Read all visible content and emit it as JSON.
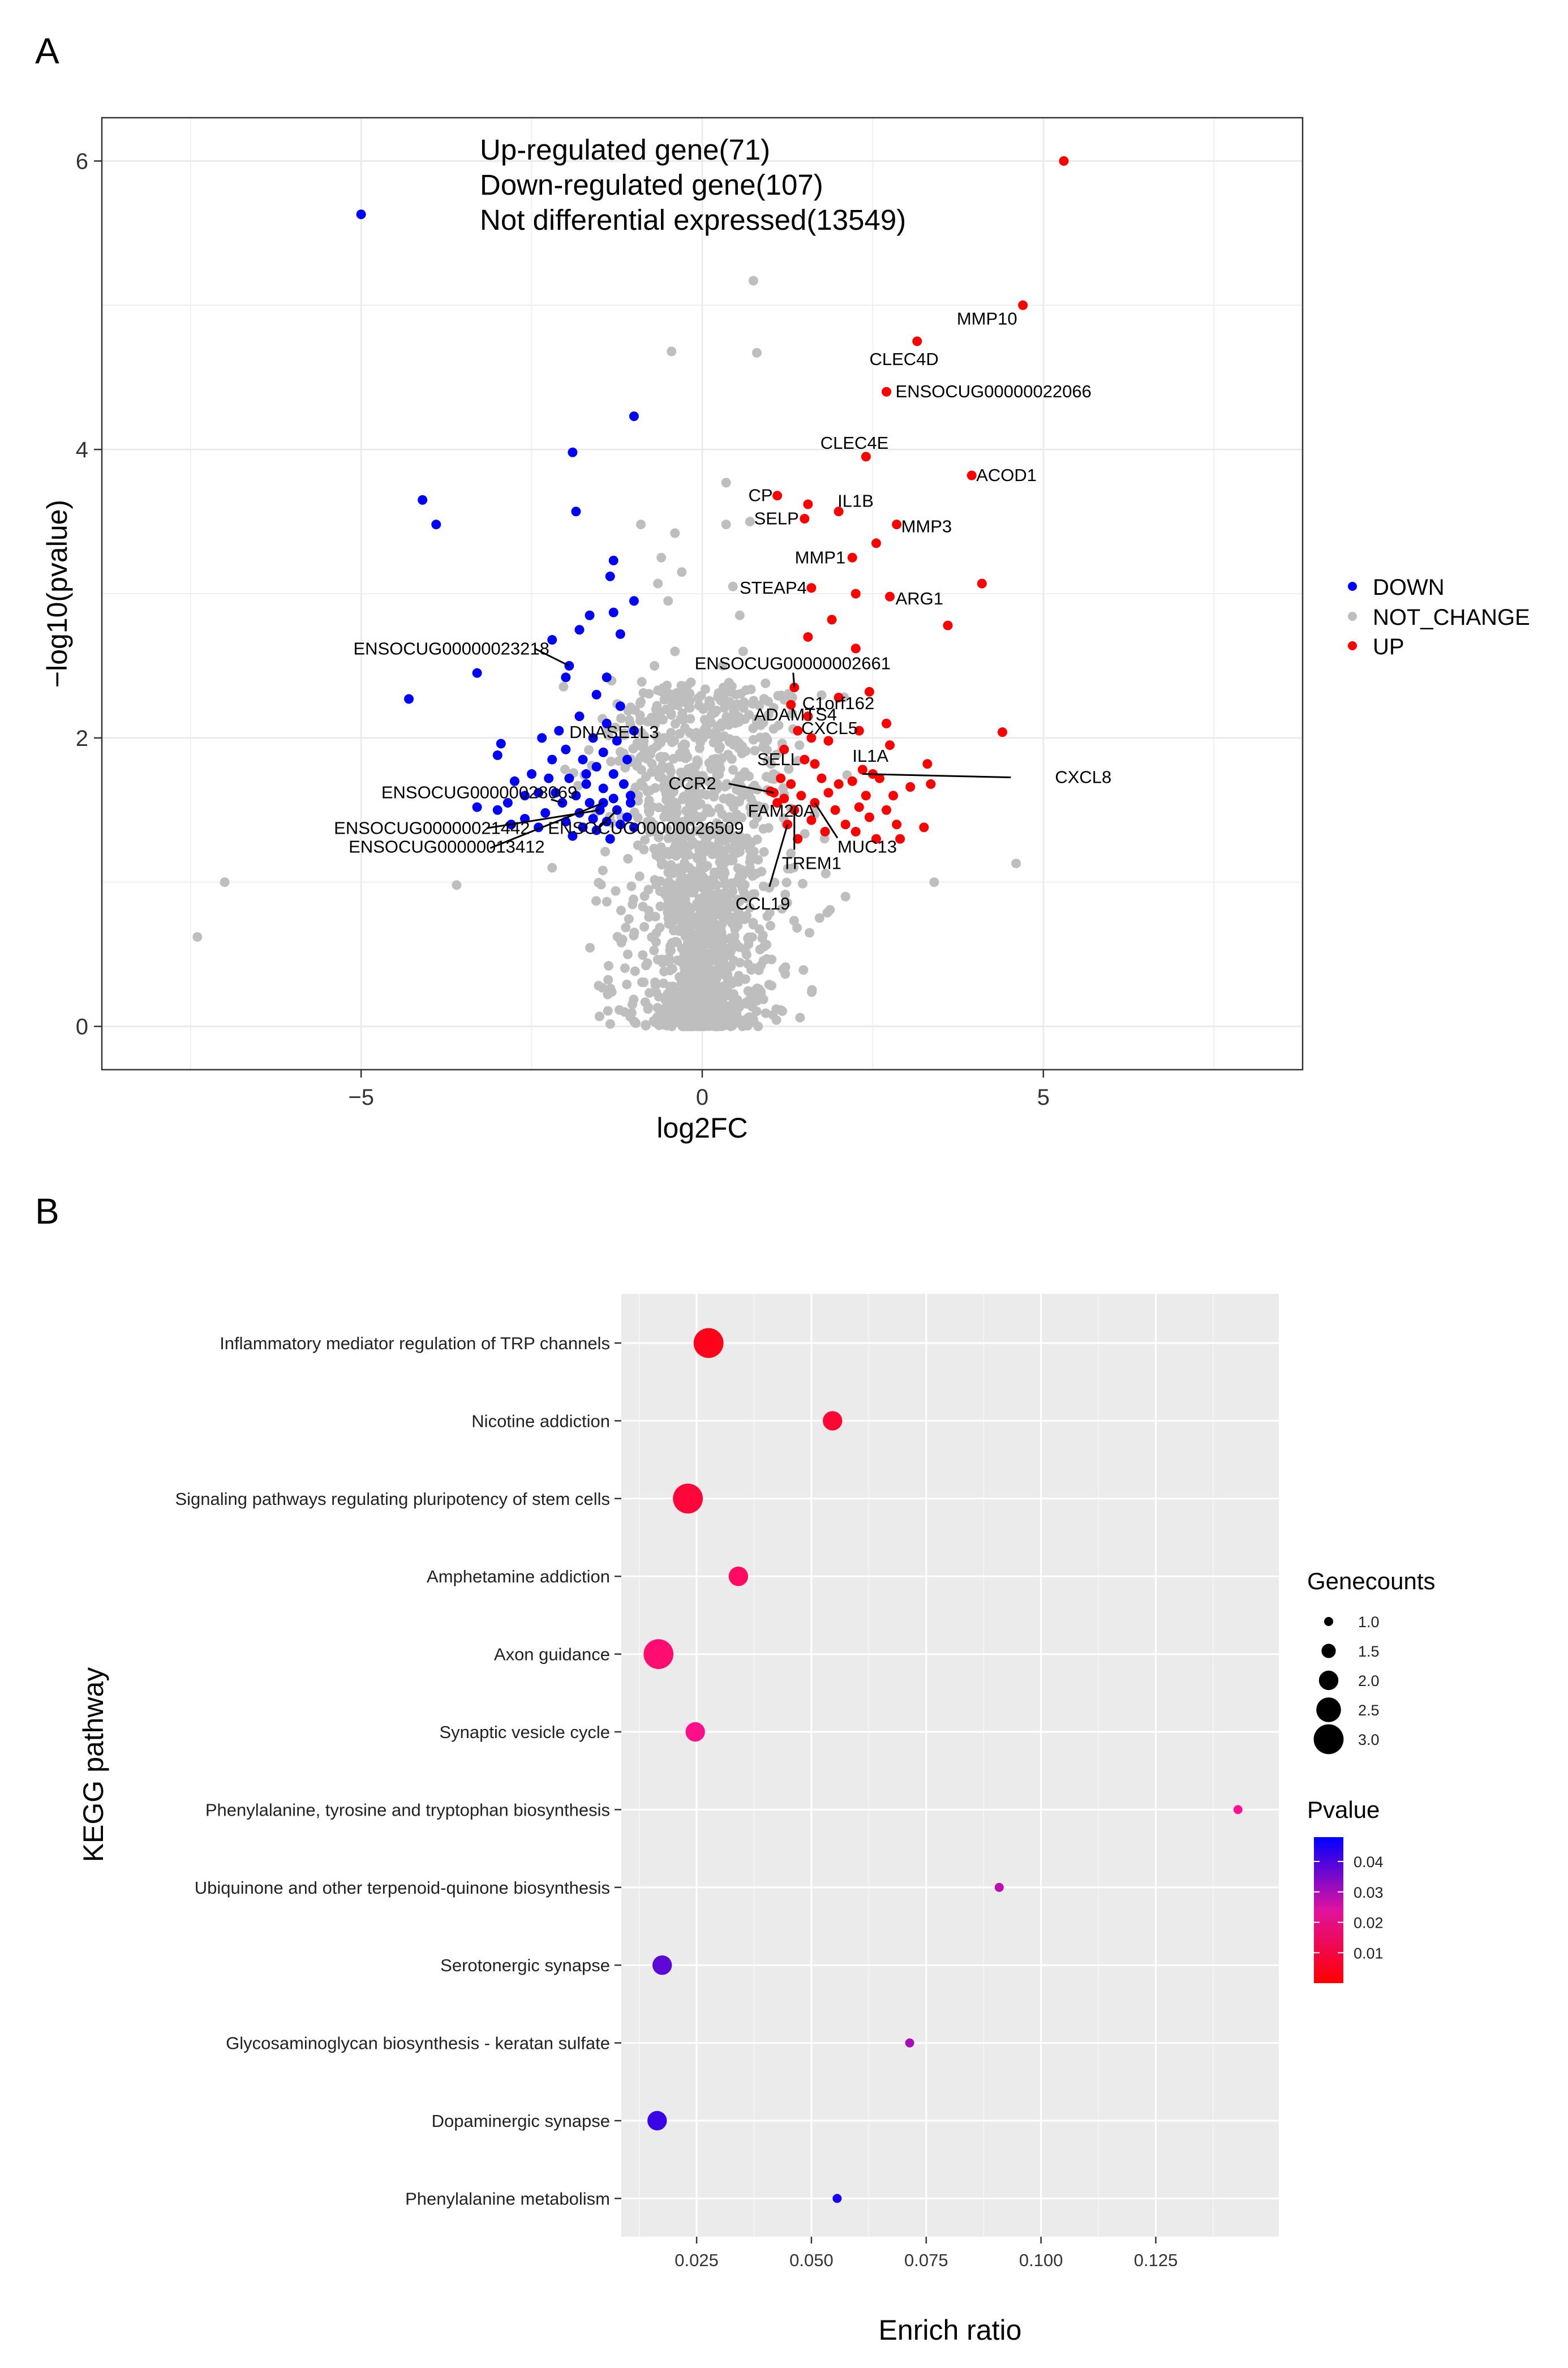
{
  "panel_a_label": "A",
  "panel_b_label": "B",
  "chart_data": [
    {
      "type": "scatter",
      "name": "volcano",
      "xlabel": "log2FC",
      "ylabel": "−log10(pvalue)",
      "xlim": [
        -8.8,
        8.8
      ],
      "ylim": [
        -0.3,
        6.3
      ],
      "x_ticks": [
        -5,
        0,
        5
      ],
      "x_tick_labels": [
        "−5",
        "0",
        "5"
      ],
      "y_ticks": [
        0,
        2,
        4,
        6
      ],
      "y_tick_labels": [
        "0",
        "2",
        "4",
        "6"
      ],
      "annotations": [
        "Up-regulated gene(71)",
        "Down-regulated gene(107)",
        "Not differential expressed(13549)"
      ],
      "legend": {
        "position": "right",
        "entries": [
          {
            "label": "DOWN",
            "color": "#0000ff"
          },
          {
            "label": "NOT_CHANGE",
            "color": "#bebebe"
          },
          {
            "label": "UP",
            "color": "#ff0000"
          }
        ]
      },
      "points": {
        "UP": [
          [
            5.3,
            6.0
          ],
          [
            4.7,
            5.0
          ],
          [
            3.15,
            4.75
          ],
          [
            2.7,
            4.4
          ],
          [
            2.4,
            3.95
          ],
          [
            3.95,
            3.82
          ],
          [
            1.1,
            3.68
          ],
          [
            1.55,
            3.62
          ],
          [
            2.0,
            3.57
          ],
          [
            1.5,
            3.52
          ],
          [
            2.85,
            3.48
          ],
          [
            2.55,
            3.35
          ],
          [
            2.2,
            3.25
          ],
          [
            4.1,
            3.07
          ],
          [
            1.6,
            3.04
          ],
          [
            2.25,
            3.0
          ],
          [
            2.75,
            2.98
          ],
          [
            1.9,
            2.82
          ],
          [
            3.6,
            2.78
          ],
          [
            1.55,
            2.7
          ],
          [
            2.25,
            2.62
          ],
          [
            1.35,
            2.35
          ],
          [
            2.45,
            2.32
          ],
          [
            1.3,
            2.23
          ],
          [
            1.55,
            2.15
          ],
          [
            2.0,
            2.28
          ],
          [
            1.4,
            2.05
          ],
          [
            1.6,
            2.0
          ],
          [
            4.4,
            2.04
          ],
          [
            2.7,
            2.1
          ],
          [
            2.3,
            2.05
          ],
          [
            1.85,
            1.98
          ],
          [
            2.75,
            1.95
          ],
          [
            1.2,
            1.92
          ],
          [
            1.5,
            1.85
          ],
          [
            1.65,
            1.82
          ],
          [
            2.35,
            1.78
          ],
          [
            3.3,
            1.82
          ],
          [
            2.5,
            1.75
          ],
          [
            1.75,
            1.72
          ],
          [
            1.15,
            1.72
          ],
          [
            1.3,
            1.68
          ],
          [
            2.0,
            1.68
          ],
          [
            2.2,
            1.7
          ],
          [
            2.6,
            1.72
          ],
          [
            3.05,
            1.66
          ],
          [
            1.05,
            1.62
          ],
          [
            1.45,
            1.6
          ],
          [
            2.8,
            1.6
          ],
          [
            1.2,
            1.58
          ],
          [
            1.65,
            1.55
          ],
          [
            2.3,
            1.52
          ],
          [
            1.1,
            1.55
          ],
          [
            1.35,
            1.5
          ],
          [
            1.95,
            1.5
          ],
          [
            2.45,
            1.45
          ],
          [
            2.7,
            1.5
          ],
          [
            1.6,
            1.43
          ],
          [
            2.1,
            1.4
          ],
          [
            2.25,
            1.35
          ],
          [
            2.85,
            1.4
          ],
          [
            1.25,
            1.4
          ],
          [
            1.8,
            1.35
          ],
          [
            2.55,
            1.3
          ],
          [
            1.4,
            1.3
          ],
          [
            3.25,
            1.38
          ],
          [
            2.4,
            1.6
          ],
          [
            1.85,
            1.62
          ],
          [
            3.35,
            1.68
          ],
          [
            1.0,
            1.63
          ],
          [
            2.9,
            1.3
          ]
        ],
        "DOWN": [
          [
            -5.0,
            5.63
          ],
          [
            -1.0,
            4.23
          ],
          [
            -1.9,
            3.98
          ],
          [
            -4.1,
            3.65
          ],
          [
            -3.9,
            3.48
          ],
          [
            -1.85,
            3.57
          ],
          [
            -1.3,
            3.23
          ],
          [
            -1.35,
            3.12
          ],
          [
            -1.0,
            2.95
          ],
          [
            -1.65,
            2.85
          ],
          [
            -1.3,
            2.87
          ],
          [
            -1.8,
            2.75
          ],
          [
            -1.2,
            2.72
          ],
          [
            -2.2,
            2.68
          ],
          [
            -1.95,
            2.5
          ],
          [
            -1.4,
            2.42
          ],
          [
            -2.0,
            2.42
          ],
          [
            -3.3,
            2.45
          ],
          [
            -4.3,
            2.27
          ],
          [
            -1.55,
            2.3
          ],
          [
            -1.2,
            2.22
          ],
          [
            -1.8,
            2.15
          ],
          [
            -1.4,
            2.1
          ],
          [
            -2.1,
            2.05
          ],
          [
            -1.0,
            2.05
          ],
          [
            -1.6,
            2.0
          ],
          [
            -2.35,
            2.0
          ],
          [
            -1.25,
            1.98
          ],
          [
            -2.95,
            1.96
          ],
          [
            -2.0,
            1.92
          ],
          [
            -1.45,
            1.9
          ],
          [
            -1.75,
            1.85
          ],
          [
            -2.2,
            1.85
          ],
          [
            -1.1,
            1.85
          ],
          [
            -3.0,
            1.88
          ],
          [
            -1.55,
            1.8
          ],
          [
            -2.5,
            1.75
          ],
          [
            -1.3,
            1.75
          ],
          [
            -1.95,
            1.72
          ],
          [
            -1.7,
            1.68
          ],
          [
            -2.75,
            1.7
          ],
          [
            -1.15,
            1.68
          ],
          [
            -1.45,
            1.65
          ],
          [
            -2.15,
            1.62
          ],
          [
            -1.85,
            1.6
          ],
          [
            -2.4,
            1.62
          ],
          [
            -1.3,
            1.58
          ],
          [
            -1.65,
            1.55
          ],
          [
            -1.05,
            1.55
          ],
          [
            -2.05,
            1.55
          ],
          [
            -3.3,
            1.52
          ],
          [
            -1.5,
            1.5
          ],
          [
            -2.85,
            1.55
          ],
          [
            -1.8,
            1.48
          ],
          [
            -1.25,
            1.5
          ],
          [
            -2.3,
            1.48
          ],
          [
            -1.6,
            1.44
          ],
          [
            -1.1,
            1.45
          ],
          [
            -2.6,
            1.44
          ],
          [
            -1.4,
            1.42
          ],
          [
            -2.0,
            1.42
          ],
          [
            -1.75,
            1.38
          ],
          [
            -1.2,
            1.4
          ],
          [
            -2.4,
            1.38
          ],
          [
            -1.55,
            1.36
          ],
          [
            -1.0,
            1.38
          ],
          [
            -3.0,
            1.5
          ],
          [
            -1.35,
            1.3
          ],
          [
            -1.9,
            1.32
          ],
          [
            -1.45,
            1.55
          ],
          [
            -2.6,
            1.6
          ],
          [
            -1.05,
            1.6
          ],
          [
            -2.8,
            1.4
          ],
          [
            -1.7,
            1.75
          ],
          [
            -2.25,
            1.72
          ]
        ],
        "NOT_CHANGE": [
          [
            0.75,
            5.17
          ],
          [
            0.8,
            4.67
          ],
          [
            -0.45,
            4.68
          ],
          [
            0.7,
            3.5
          ],
          [
            0.35,
            3.77
          ],
          [
            0.35,
            3.48
          ],
          [
            -0.4,
            3.42
          ],
          [
            -0.9,
            3.48
          ],
          [
            -0.6,
            3.25
          ],
          [
            -0.3,
            3.15
          ],
          [
            -0.65,
            3.07
          ],
          [
            -0.5,
            2.95
          ],
          [
            0.45,
            3.05
          ],
          [
            0.55,
            2.85
          ],
          [
            0.6,
            2.6
          ],
          [
            -0.4,
            2.6
          ],
          [
            -0.7,
            2.5
          ],
          [
            0.3,
            2.5
          ],
          [
            -0.2,
            2.3
          ],
          [
            0.4,
            2.25
          ],
          [
            -0.9,
            2.25
          ],
          [
            -0.5,
            2.0
          ],
          [
            0.8,
            2.1
          ],
          [
            -0.25,
            1.9
          ],
          [
            4.6,
            1.13
          ],
          [
            -7.0,
            1.0
          ],
          [
            -3.6,
            0.98
          ],
          [
            -7.4,
            0.62
          ],
          [
            -0.3,
            1.02
          ],
          [
            0.7,
            1.1
          ],
          [
            1.3,
            1.2
          ],
          [
            -1.2,
            0.6
          ],
          [
            2.1,
            0.9
          ],
          [
            3.4,
            1.0
          ],
          [
            -2.2,
            1.1
          ]
        ]
      },
      "gene_labels": [
        {
          "label": "MMP10",
          "x": 4.7,
          "y": 5.0
        },
        {
          "label": "CLEC4D",
          "x": 3.15,
          "y": 4.75
        },
        {
          "label": "ENSOCUG00000022066",
          "x": 2.7,
          "y": 4.4
        },
        {
          "label": "CLEC4E",
          "x": 2.4,
          "y": 3.95
        },
        {
          "label": "ACOD1",
          "x": 3.95,
          "y": 3.82
        },
        {
          "label": "CP",
          "x": 1.1,
          "y": 3.68
        },
        {
          "label": "IL1B",
          "x": 2.0,
          "y": 3.57
        },
        {
          "label": "SELP",
          "x": 1.5,
          "y": 3.52
        },
        {
          "label": "MMP3",
          "x": 2.85,
          "y": 3.48
        },
        {
          "label": "MMP1",
          "x": 2.2,
          "y": 3.25
        },
        {
          "label": "STEAP4",
          "x": 1.6,
          "y": 3.04
        },
        {
          "label": "ARG1",
          "x": 2.75,
          "y": 2.98
        },
        {
          "label": "ENSOCUG00000023218",
          "x": -1.95,
          "y": 2.5
        },
        {
          "label": "ENSOCUG00000002661",
          "x": 1.35,
          "y": 2.35
        },
        {
          "label": "C1orf162",
          "x": 1.3,
          "y": 2.23
        },
        {
          "label": "ADAMTS4",
          "x": 1.4,
          "y": 2.05
        },
        {
          "label": "CXCL5",
          "x": 1.85,
          "y": 1.98
        },
        {
          "label": "DNASE1L3",
          "x": -1.6,
          "y": 2.0
        },
        {
          "label": "SELL",
          "x": 1.5,
          "y": 1.85
        },
        {
          "label": "IL1A",
          "x": 2.35,
          "y": 1.78
        },
        {
          "label": "CXCL8",
          "x": 2.35,
          "y": 1.75
        },
        {
          "label": "CCR2",
          "x": 1.05,
          "y": 1.62
        },
        {
          "label": "FAM20A",
          "x": 1.2,
          "y": 1.58
        },
        {
          "label": "MUC13",
          "x": 1.65,
          "y": 1.55
        },
        {
          "label": "ENSOCUG00000028069",
          "x": -2.05,
          "y": 1.55
        },
        {
          "label": "ENSOCUG00000021442",
          "x": -1.5,
          "y": 1.5
        },
        {
          "label": "ENSOCUG00000026509",
          "x": -1.25,
          "y": 1.5
        },
        {
          "label": "TREM1",
          "x": 1.35,
          "y": 1.5
        },
        {
          "label": "ENSOCUG00000013412",
          "x": -1.45,
          "y": 1.55
        },
        {
          "label": "CCL19",
          "x": 1.25,
          "y": 1.4
        }
      ]
    },
    {
      "type": "scatter",
      "name": "kegg-enrichment-dotplot",
      "xlabel": "Enrich ratio",
      "ylabel": "KEGG pathway",
      "xlim": [
        0.0086,
        0.1518
      ],
      "x_ticks": [
        0.025,
        0.05,
        0.075,
        0.1,
        0.125
      ],
      "x_tick_labels": [
        "0.025",
        "0.050",
        "0.075",
        "0.100",
        "0.125"
      ],
      "categories": [
        "Inflammatory mediator regulation of TRP channels",
        "Nicotine addiction",
        "Signaling pathways regulating pluripotency of stem cells",
        "Amphetamine addiction",
        "Axon guidance",
        "Synaptic vesicle cycle",
        "Phenylalanine, tyrosine and tryptophan biosynthesis",
        "Ubiquinone and other terpenoid-quinone biosynthesis",
        "Serotonergic synapse",
        "Glycosaminoglycan biosynthesis - keratan sulfate",
        "Dopaminergic synapse",
        "Phenylalanine metabolism"
      ],
      "enrich_ratio": [
        0.0276,
        0.0546,
        0.0231,
        0.0341,
        0.0167,
        0.0247,
        0.1429,
        0.0909,
        0.0175,
        0.0714,
        0.0164,
        0.0556
      ],
      "gene_counts": [
        3,
        2,
        3,
        2,
        3,
        2,
        1,
        1,
        2,
        1,
        2,
        1
      ],
      "pvalue": [
        0.004,
        0.008,
        0.009,
        0.015,
        0.017,
        0.021,
        0.022,
        0.028,
        0.038,
        0.03,
        0.042,
        0.046
      ],
      "legend_size": {
        "title": "Genecounts",
        "values": [
          1.0,
          1.5,
          2.0,
          2.5,
          3.0
        ],
        "labels": [
          "1.0",
          "1.5",
          "2.0",
          "2.5",
          "3.0"
        ]
      },
      "legend_color": {
        "title": "Pvalue",
        "range": [
          0.0,
          0.048
        ],
        "ticks": [
          0.01,
          0.02,
          0.03,
          0.04
        ],
        "tick_labels": [
          "0.01",
          "0.02",
          "0.03",
          "0.04"
        ],
        "low_color": "#ff0000",
        "high_color": "#0000ff"
      }
    }
  ]
}
